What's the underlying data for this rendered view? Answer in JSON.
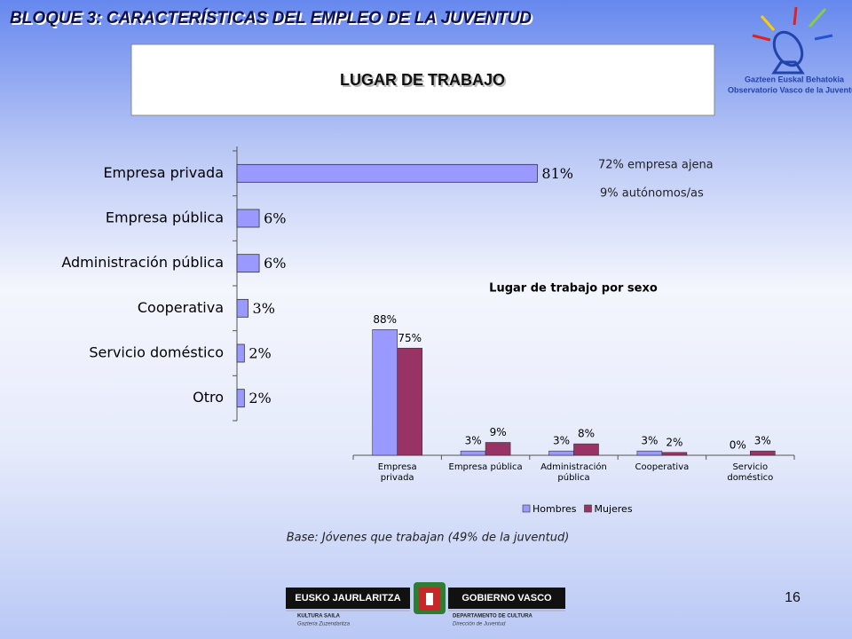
{
  "header": {
    "title": "BLOQUE 3: CARACTERÍSTICAS DEL EMPLEO DE LA JUVENTUD",
    "box_title": "LUGAR DE TRABAJO",
    "logo_line1": "Gazteen Euskal Behatokia",
    "logo_line2": "Observatorio Vasco de la Juventud"
  },
  "chart_data": [
    {
      "type": "hbar",
      "categories": [
        "Empresa privada",
        "Empresa pública",
        "Administración pública",
        "Cooperativa",
        "Servicio doméstico",
        "Otro"
      ],
      "values": [
        81,
        6,
        6,
        3,
        2,
        2
      ],
      "value_labels": [
        "81%",
        "6%",
        "6%",
        "3%",
        "2%",
        "2%"
      ],
      "color": "#9999ff",
      "xlim": [
        0,
        90
      ],
      "annotations": [
        "72% empresa ajena",
        "9% autónomos/as"
      ]
    },
    {
      "type": "grouped_bar",
      "title": "Lugar de trabajo por sexo",
      "categories": [
        "Empresa\nprivada",
        "Empresa pública",
        "Administración\npública",
        "Cooperativa",
        "Servicio\ndoméstico"
      ],
      "series": [
        {
          "name": "Hombres",
          "color": "#9999ff",
          "values": [
            88,
            3,
            3,
            3,
            0
          ],
          "value_labels": [
            "88%",
            "3%",
            "3%",
            "3%",
            "0%"
          ]
        },
        {
          "name": "Mujeres",
          "color": "#993366",
          "values": [
            75,
            9,
            8,
            2,
            3
          ],
          "value_labels": [
            "75%",
            "9%",
            "8%",
            "2%",
            "3%"
          ]
        }
      ],
      "ylim": [
        0,
        100
      ]
    }
  ],
  "footer": {
    "base_note": "Base: Jóvenes que trabajan (49% de la juventud)",
    "page_number": "16",
    "banner_left": "EUSKO JAURLARITZA",
    "banner_right": "GOBIERNO VASCO",
    "dept_left_1": "KULTURA SAILA",
    "dept_left_2": "Gazteria Zuzendaritza",
    "dept_right_1": "DEPARTAMENTO DE CULTURA",
    "dept_right_2": "Dirección de Juventud"
  }
}
